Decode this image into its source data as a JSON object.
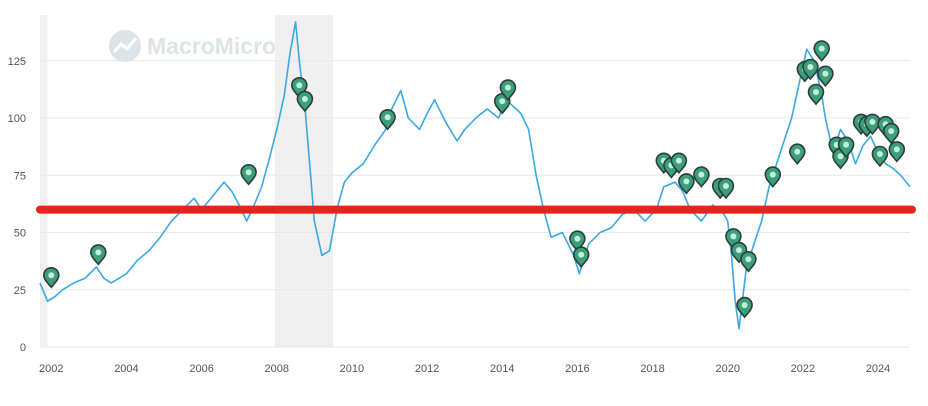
{
  "chart_data": {
    "type": "line",
    "title": "",
    "xlabel": "",
    "ylabel": "",
    "xlim": [
      2001.7,
      2024.85
    ],
    "ylim": [
      0,
      145
    ],
    "y_ticks": [
      "0",
      "25",
      "50",
      "75",
      "100",
      "125"
    ],
    "x_ticks": [
      "2002",
      "2004",
      "2006",
      "2008",
      "2010",
      "2012",
      "2014",
      "2016",
      "2018",
      "2020",
      "2022",
      "2024"
    ],
    "grid": "horizontal",
    "watermark": "MacroMicro",
    "colors": {
      "line": "#3aa8e6",
      "threshold": "#e8231d",
      "recession": "#f0f0f0",
      "marker": "#3d9e7c",
      "marker_outline": "#2b3f36"
    },
    "recession_bands": [
      [
        2001.7,
        2001.9
      ],
      [
        2007.95,
        2009.5
      ]
    ],
    "threshold": 60,
    "series": [
      {
        "x": [
          2001.7,
          2001.9,
          2002.1,
          2002.3,
          2002.6,
          2002.9,
          2003.2,
          2003.4,
          2003.6,
          2004.0,
          2004.3,
          2004.6,
          2004.9,
          2005.2,
          2005.5,
          2005.8,
          2006.0,
          2006.3,
          2006.6,
          2006.8,
          2007.0,
          2007.2,
          2007.4,
          2007.6,
          2007.8,
          2008.0,
          2008.2,
          2008.35,
          2008.5,
          2008.6,
          2008.75,
          2008.9,
          2009.0,
          2009.2,
          2009.4,
          2009.6,
          2009.8,
          2010.0,
          2010.3,
          2010.6,
          2010.9,
          2011.0,
          2011.3,
          2011.5,
          2011.8,
          2012.0,
          2012.2,
          2012.5,
          2012.8,
          2013.0,
          2013.3,
          2013.6,
          2013.9,
          2014.1,
          2014.3,
          2014.5,
          2014.7,
          2014.9,
          2015.1,
          2015.3,
          2015.6,
          2015.9,
          2016.05,
          2016.3,
          2016.6,
          2016.9,
          2017.2,
          2017.5,
          2017.8,
          2018.1,
          2018.3,
          2018.6,
          2018.8,
          2019.0,
          2019.3,
          2019.6,
          2019.9,
          2020.0,
          2020.1,
          2020.2,
          2020.3,
          2020.5,
          2020.7,
          2020.9,
          2021.1,
          2021.3,
          2021.5,
          2021.7,
          2021.9,
          2022.1,
          2022.3,
          2022.5,
          2022.6,
          2022.8,
          2023.0,
          2023.2,
          2023.4,
          2023.6,
          2023.8,
          2024.0,
          2024.2,
          2024.4,
          2024.6,
          2024.85
        ],
        "y": [
          28,
          20,
          22,
          25,
          28,
          30,
          35,
          30,
          28,
          32,
          38,
          42,
          48,
          55,
          60,
          65,
          60,
          66,
          72,
          68,
          62,
          55,
          62,
          70,
          82,
          95,
          110,
          128,
          142,
          125,
          105,
          75,
          55,
          40,
          42,
          60,
          72,
          76,
          80,
          88,
          95,
          102,
          112,
          100,
          95,
          102,
          108,
          98,
          90,
          95,
          100,
          104,
          100,
          108,
          105,
          102,
          95,
          75,
          60,
          48,
          50,
          40,
          32,
          45,
          50,
          52,
          58,
          60,
          55,
          60,
          70,
          72,
          68,
          60,
          55,
          62,
          58,
          55,
          40,
          20,
          8,
          35,
          45,
          55,
          70,
          80,
          90,
          100,
          115,
          130,
          125,
          110,
          100,
          85,
          95,
          90,
          80,
          88,
          92,
          85,
          80,
          78,
          75,
          70
        ]
      }
    ],
    "markers": {
      "x": [
        2002.0,
        2003.25,
        2007.25,
        2008.6,
        2008.75,
        2010.95,
        2014.0,
        2014.15,
        2016.0,
        2016.1,
        2018.3,
        2018.5,
        2018.7,
        2018.9,
        2019.3,
        2019.8,
        2019.95,
        2020.15,
        2020.3,
        2020.45,
        2020.55,
        2021.2,
        2021.85,
        2022.05,
        2022.2,
        2022.35,
        2022.5,
        2022.6,
        2022.9,
        2023.0,
        2023.15,
        2023.55,
        2023.7,
        2023.85,
        2024.05,
        2024.2,
        2024.35,
        2024.5
      ],
      "y": [
        30,
        40,
        75,
        113,
        107,
        99,
        106,
        112,
        46,
        39,
        80,
        78,
        80,
        71,
        74,
        69,
        69,
        47,
        41,
        17,
        37,
        74,
        84,
        120,
        121,
        110,
        129,
        118,
        87,
        82,
        87,
        97,
        96,
        97,
        83,
        96,
        93,
        85
      ]
    }
  }
}
